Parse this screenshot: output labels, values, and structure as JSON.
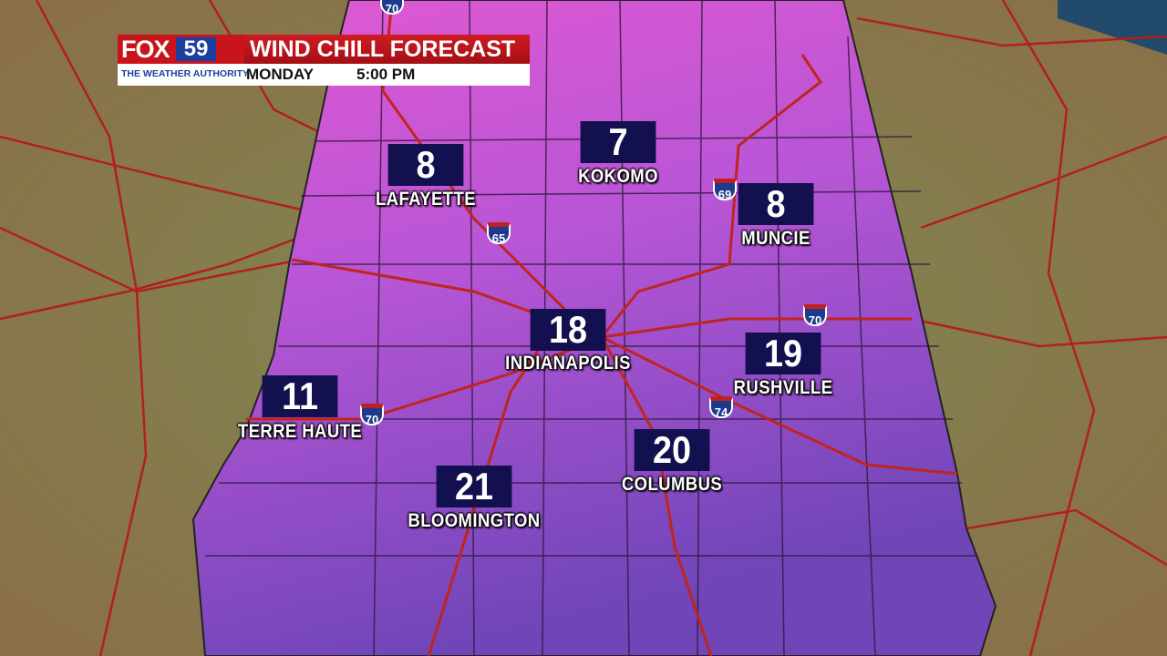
{
  "header": {
    "brand": "FOX",
    "channel": "59",
    "tagline": "THE WEATHER AUTHORITY",
    "title": "WIND CHILL FORECAST",
    "day": "MONDAY",
    "time": "5:00 PM"
  },
  "cities": [
    {
      "name": "LAFAYETTE",
      "value": 8
    },
    {
      "name": "KOKOMO",
      "value": 7
    },
    {
      "name": "MUNCIE",
      "value": 8
    },
    {
      "name": "INDIANAPOLIS",
      "value": 18
    },
    {
      "name": "RUSHVILLE",
      "value": 19
    },
    {
      "name": "TERRE HAUTE",
      "value": 11
    },
    {
      "name": "COLUMBUS",
      "value": 20
    },
    {
      "name": "BLOOMINGTON",
      "value": 21
    }
  ],
  "shields": [
    "70",
    "65",
    "69",
    "70",
    "74",
    "70"
  ]
}
